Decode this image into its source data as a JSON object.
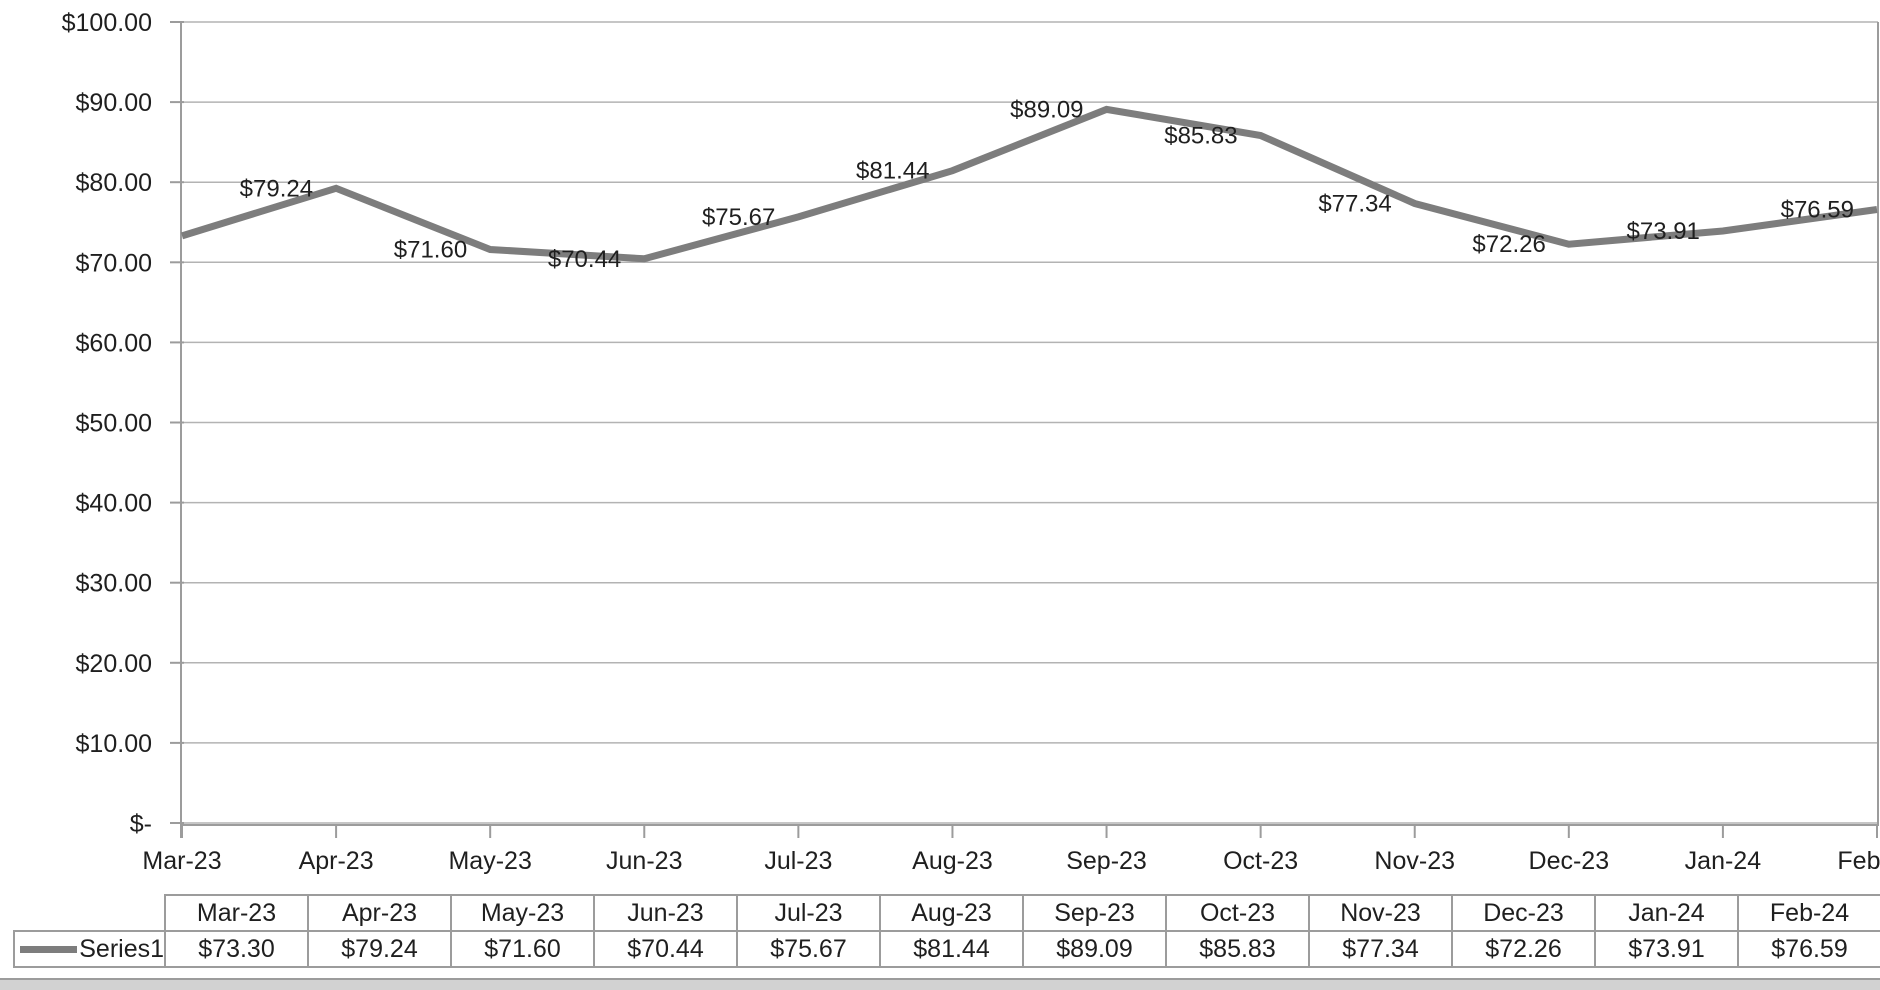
{
  "chart_data": {
    "type": "line",
    "title": "",
    "categories": [
      "Mar-23",
      "Apr-23",
      "May-23",
      "Jun-23",
      "Jul-23",
      "Aug-23",
      "Sep-23",
      "Oct-23",
      "Nov-23",
      "Dec-23",
      "Jan-24",
      "Feb-24"
    ],
    "series": [
      {
        "name": "Series1",
        "values": [
          73.3,
          79.24,
          71.6,
          70.44,
          75.67,
          81.44,
          89.09,
          85.83,
          77.34,
          72.26,
          73.91,
          76.59
        ]
      }
    ],
    "data_labels": [
      "",
      "$79.24",
      "$71.60",
      "$70.44",
      "$75.67",
      "$81.44",
      "$89.09",
      "$85.83",
      "$77.34",
      "$72.26",
      "$73.91",
      "$76.59"
    ],
    "xlabel": "",
    "ylabel": "",
    "y_axis": {
      "min": 0,
      "max": 100,
      "step": 10,
      "tick_labels": [
        "$-",
        "$10.00",
        "$20.00",
        "$30.00",
        "$40.00",
        "$50.00",
        "$60.00",
        "$70.00",
        "$80.00",
        "$90.00",
        "$100.00"
      ]
    },
    "grid": true,
    "legend_position": "data-table-left"
  },
  "data_table": {
    "legend_label": "Series1",
    "columns": [
      "Mar-23",
      "Apr-23",
      "May-23",
      "Jun-23",
      "Jul-23",
      "Aug-23",
      "Sep-23",
      "Oct-23",
      "Nov-23",
      "Dec-23",
      "Jan-24",
      "Feb-24"
    ],
    "rows": [
      {
        "label": "Series1",
        "values": [
          "$73.30",
          "$79.24",
          "$71.60",
          "$70.44",
          "$75.67",
          "$81.44",
          "$89.09",
          "$85.83",
          "$77.34",
          "$72.26",
          "$73.91",
          "$76.59"
        ]
      }
    ]
  },
  "colors": {
    "series_line": "#7d7d7d",
    "gridline": "#b3b3b3",
    "axis": "#9c9c9c",
    "table_border": "#9c9c9c",
    "text": "#1f1f1f",
    "bottom_bar": "#d2d2d2",
    "background": "#ffffff"
  }
}
